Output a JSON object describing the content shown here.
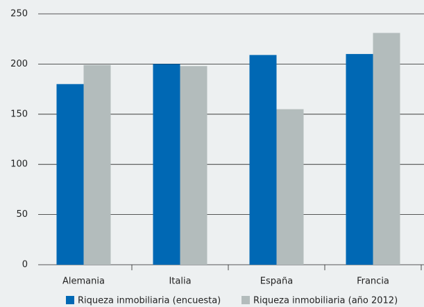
{
  "chart_data": {
    "type": "bar",
    "categories": [
      "Alemania",
      "Italia",
      "España",
      "Francia"
    ],
    "series": [
      {
        "name": "Riqueza inmobiliaria (encuesta)",
        "color": "#0068b4",
        "values": [
          180,
          200,
          209,
          210
        ]
      },
      {
        "name": "Riqueza inmobiliaria (año 2012)",
        "color": "#b3bcbc",
        "values": [
          199,
          198,
          155,
          231
        ]
      }
    ],
    "ylim": [
      0,
      250
    ],
    "yticks": [
      0,
      50,
      100,
      150,
      200,
      250
    ],
    "grid": true,
    "legend": "bottom"
  }
}
